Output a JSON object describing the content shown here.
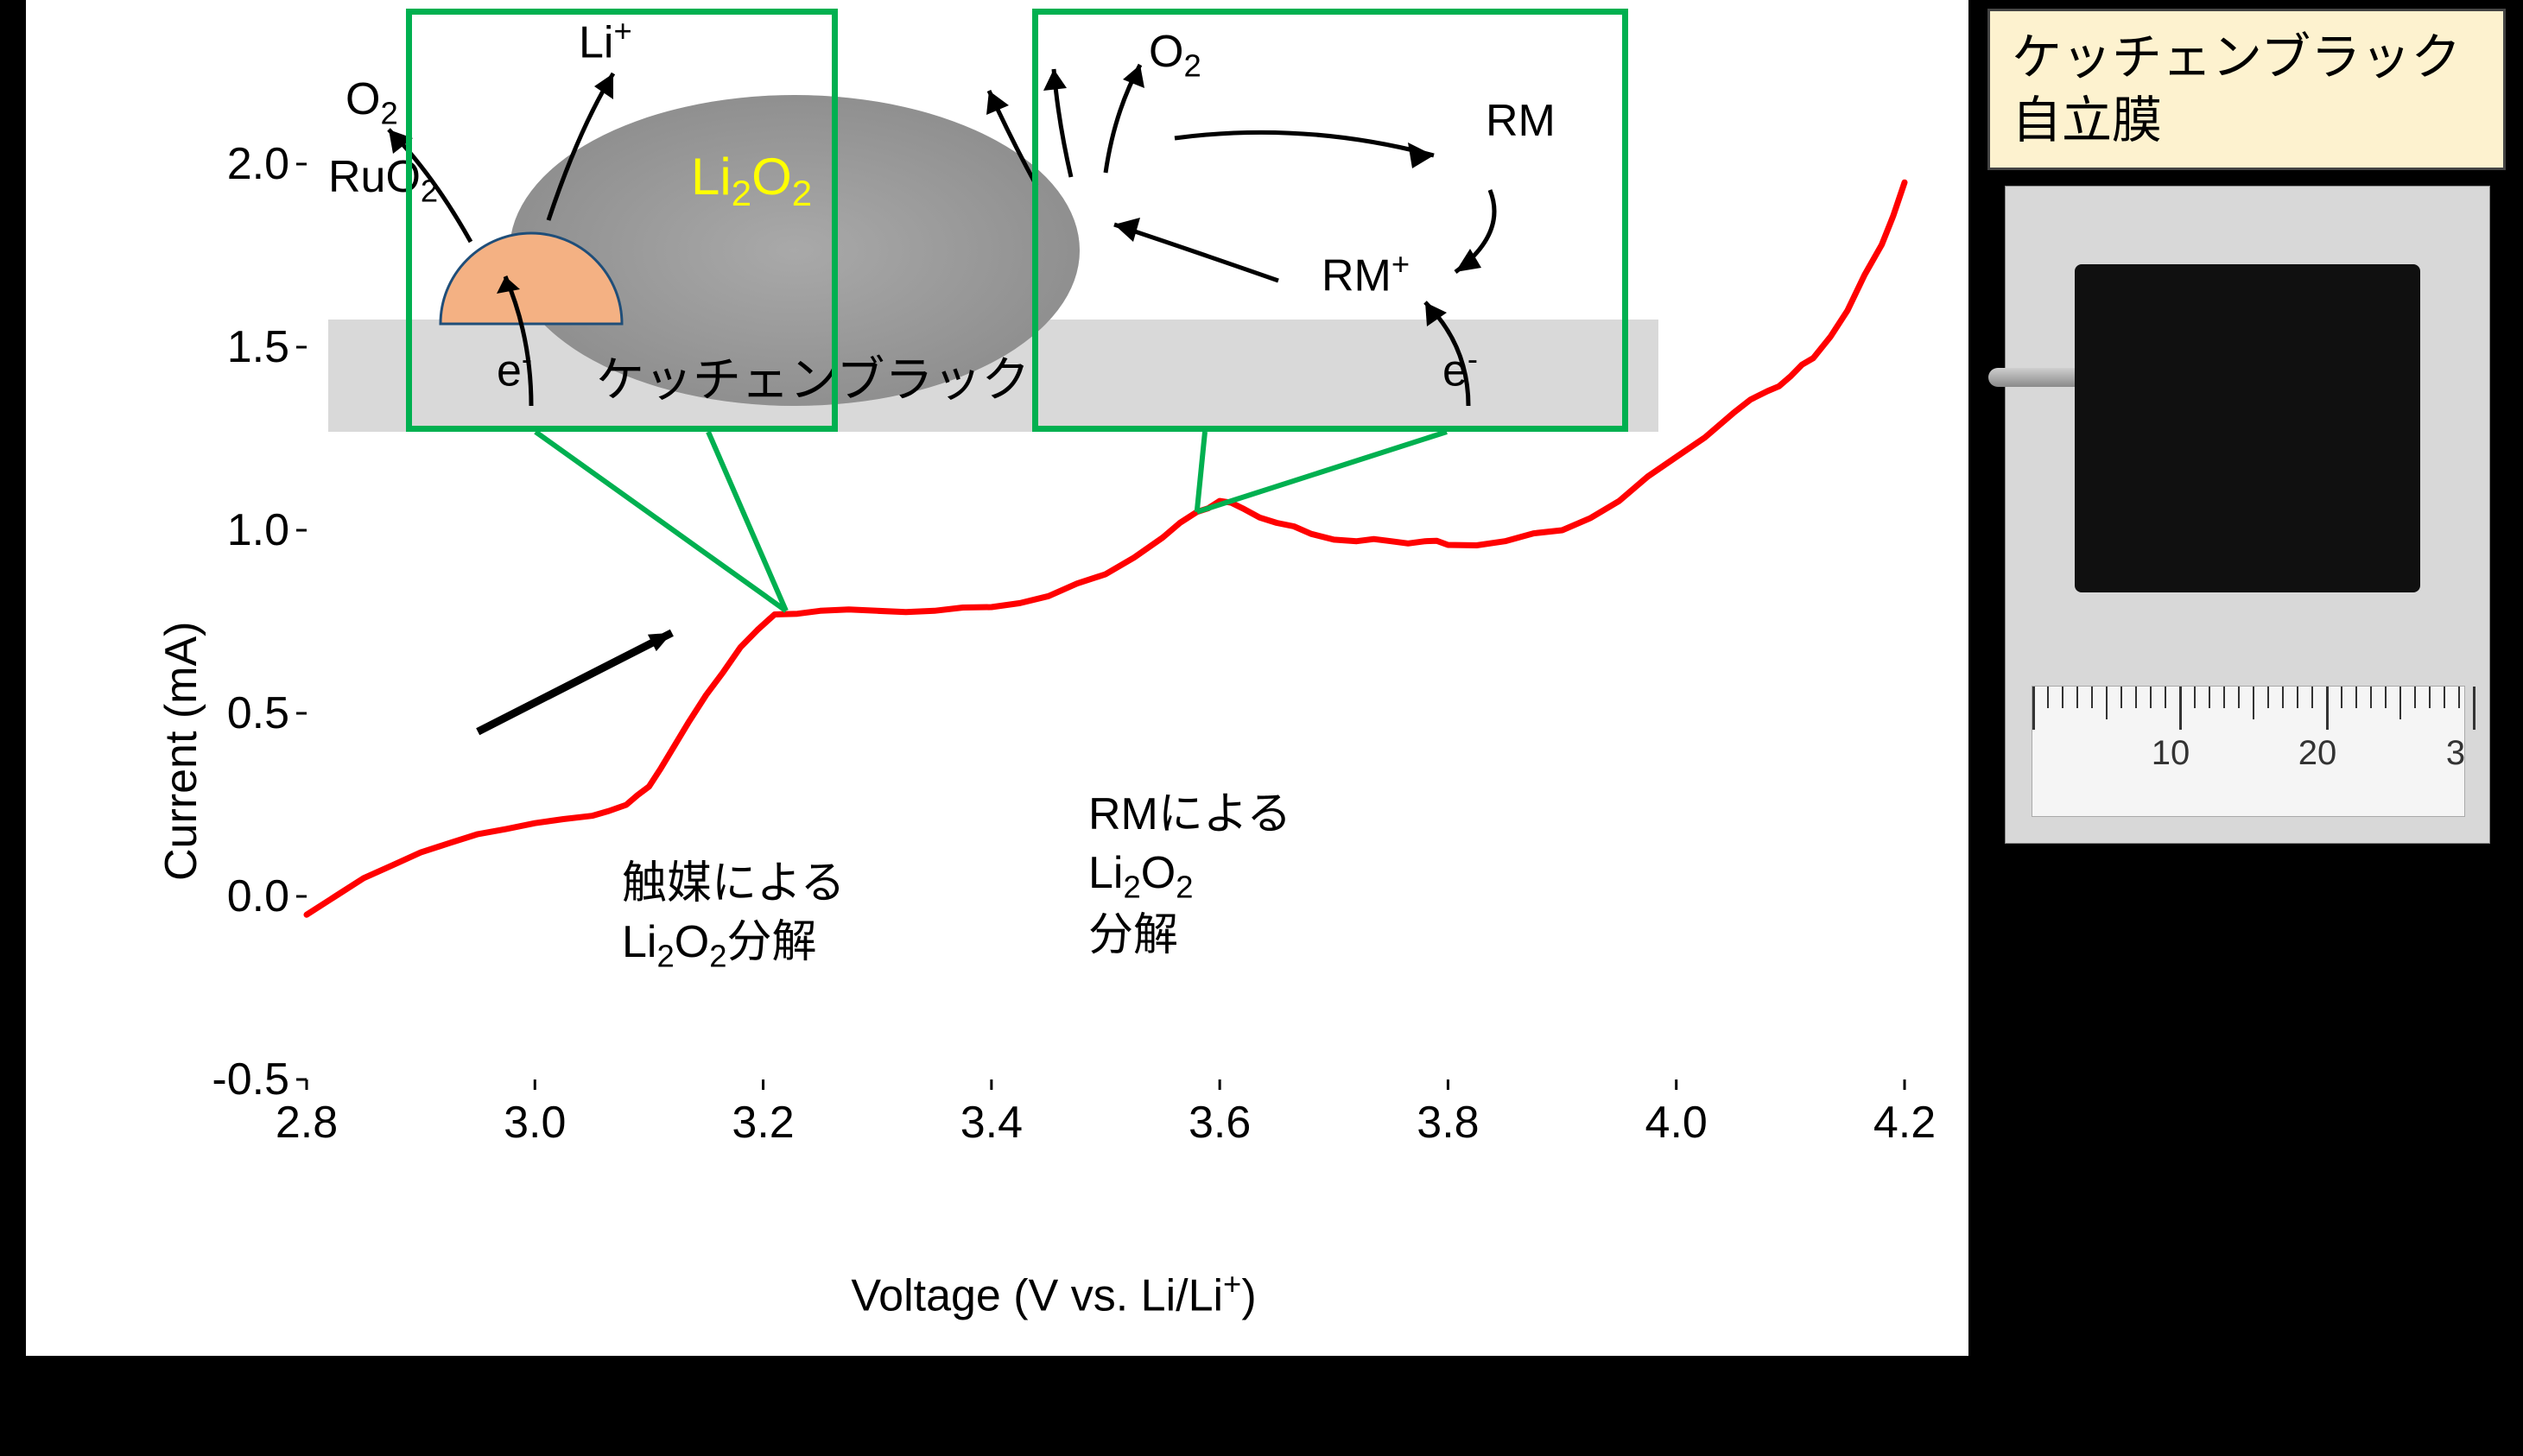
{
  "chart": {
    "type": "line",
    "xlabel_pre": "Voltage (V vs. Li/Li",
    "xlabel_sup": "+",
    "xlabel_post": ")",
    "ylabel": "Current (mA)",
    "xlim": [
      2.8,
      4.2
    ],
    "ylim": [
      -0.5,
      2.0
    ],
    "xticks": [
      "2.8",
      "3.0",
      "3.2",
      "3.4",
      "3.6",
      "3.8",
      "4.0",
      "4.2"
    ],
    "yticks": [
      "-0.5",
      "0.0",
      "0.5",
      "1.0",
      "1.5",
      "2.0"
    ],
    "line_color": "#ff0000",
    "line_width": 7,
    "background_color": "#ffffff",
    "axis_color": "#000000",
    "tick_fontsize": 52,
    "label_fontsize": 52,
    "data_points": [
      [
        2.8,
        -0.05
      ],
      [
        2.85,
        0.05
      ],
      [
        2.9,
        0.12
      ],
      [
        2.95,
        0.17
      ],
      [
        3.0,
        0.2
      ],
      [
        3.05,
        0.22
      ],
      [
        3.08,
        0.25
      ],
      [
        3.1,
        0.3
      ],
      [
        3.12,
        0.4
      ],
      [
        3.15,
        0.55
      ],
      [
        3.18,
        0.68
      ],
      [
        3.21,
        0.77
      ],
      [
        3.25,
        0.78
      ],
      [
        3.3,
        0.78
      ],
      [
        3.35,
        0.78
      ],
      [
        3.4,
        0.79
      ],
      [
        3.45,
        0.82
      ],
      [
        3.5,
        0.88
      ],
      [
        3.55,
        0.98
      ],
      [
        3.58,
        1.05
      ],
      [
        3.6,
        1.08
      ],
      [
        3.62,
        1.06
      ],
      [
        3.65,
        1.02
      ],
      [
        3.68,
        0.99
      ],
      [
        3.72,
        0.97
      ],
      [
        3.75,
        0.97
      ],
      [
        3.78,
        0.97
      ],
      [
        3.8,
        0.96
      ],
      [
        3.85,
        0.97
      ],
      [
        3.9,
        1.0
      ],
      [
        3.95,
        1.08
      ],
      [
        4.0,
        1.2
      ],
      [
        4.05,
        1.32
      ],
      [
        4.08,
        1.38
      ],
      [
        4.1,
        1.42
      ],
      [
        4.12,
        1.47
      ],
      [
        4.15,
        1.6
      ],
      [
        4.18,
        1.78
      ],
      [
        4.2,
        1.95
      ]
    ],
    "annotations": {
      "arrow_color": "#000000",
      "callout_color": "#00b050",
      "peak1_line1": "触媒による",
      "peak1_line2_pre": "Li",
      "peak1_line2_sub1": "2",
      "peak1_line2_mid": "O",
      "peak1_line2_sub2": "2",
      "peak1_line2_post": "分解",
      "peak2_line1": "RMによる",
      "peak2_line2_pre": "Li",
      "peak2_line2_sub1": "2",
      "peak2_line2_mid": "O",
      "peak2_line2_sub2": "2",
      "peak2_line3": "分解"
    }
  },
  "schematic": {
    "substrate_label": "ケッチェンブラック",
    "substrate_color": "#d9d9d9",
    "particle_label_pre": "Li",
    "particle_label_sub1": "2",
    "particle_label_mid": "O",
    "particle_label_sub2": "2",
    "particle_label_color": "#ffff00",
    "catalyst_label_pre": "RuO",
    "catalyst_label_sub": "2",
    "catalyst_color": "#f4b183",
    "electron_label_pre": "e",
    "electron_label_sup": "-",
    "o2_label_pre": "O",
    "o2_label_sub": "2",
    "li_label_pre": "Li",
    "li_label_sup": "+",
    "rm_label": "RM",
    "rmplus_label_pre": "RM",
    "rmplus_label_sup": "+",
    "box_color": "#00b050"
  },
  "photo": {
    "label_line1": "ケッチェンブラック",
    "label_line2": "自立膜",
    "label_bg": "#fdf2cf",
    "sample_color": "#101010",
    "ruler_marks": [
      "10",
      "20",
      "3"
    ]
  }
}
